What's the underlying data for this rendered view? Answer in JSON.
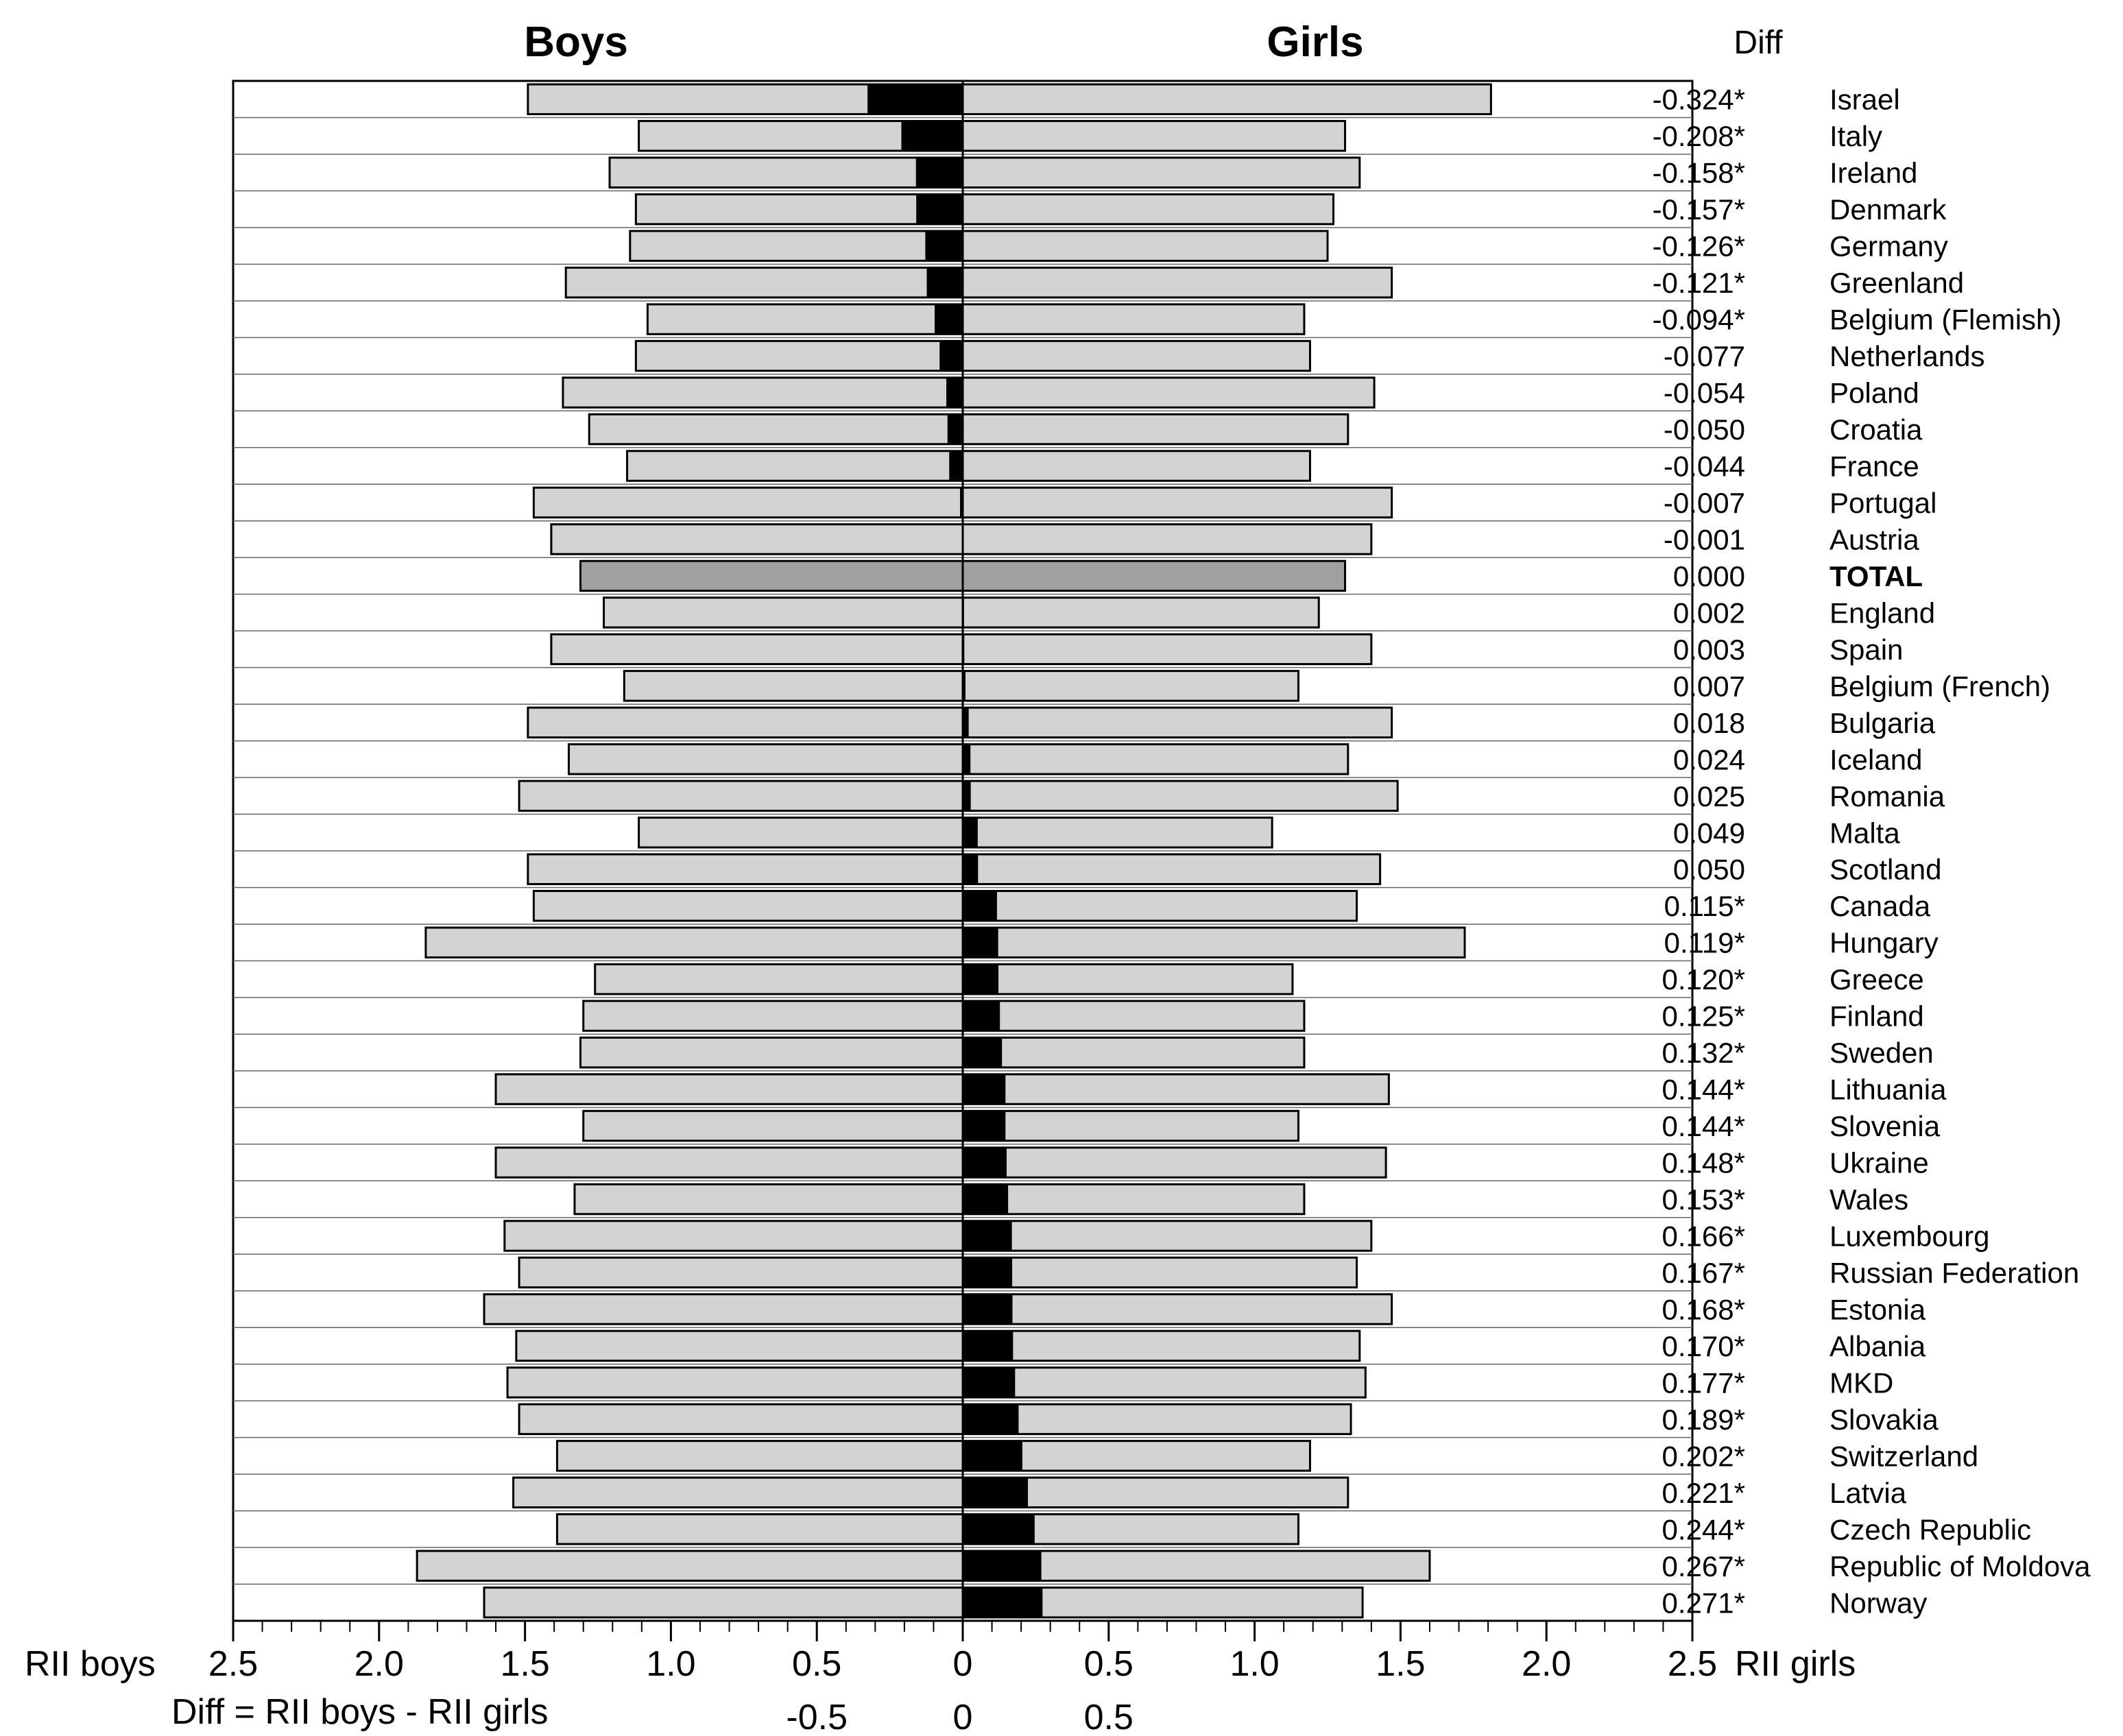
{
  "chart_data": {
    "type": "bar",
    "orientation": "horizontal",
    "layout": "back-to-back",
    "headers": {
      "left": "Boys",
      "right": "Girls",
      "diff": "Diff"
    },
    "total_label": "TOTAL",
    "axis": {
      "left_label": "RII boys",
      "right_label": "RII girls",
      "diff_label": "Diff = RII boys - RII girls",
      "range": [
        0,
        2.5
      ],
      "ticks_left": [
        "2.5",
        "2.0",
        "1.5",
        "1.0",
        "0.5",
        "0"
      ],
      "ticks_right": [
        "0.5",
        "1.0",
        "1.5",
        "2.0",
        "2.5"
      ],
      "diff_ticks": [
        "-0.5",
        "0",
        "0.5"
      ]
    },
    "colors": {
      "bar": "#d3d3d3",
      "total": "#a0a0a0",
      "diff": "#000000",
      "outline": "#000000"
    },
    "rows": [
      {
        "country": "Israel",
        "diff": "-0.324*",
        "diff_value": -0.324,
        "boys": 1.49,
        "girls": 1.81
      },
      {
        "country": "Italy",
        "diff": "-0.208*",
        "diff_value": -0.208,
        "boys": 1.11,
        "girls": 1.31
      },
      {
        "country": "Ireland",
        "diff": "-0.158*",
        "diff_value": -0.158,
        "boys": 1.21,
        "girls": 1.36
      },
      {
        "country": "Denmark",
        "diff": "-0.157*",
        "diff_value": -0.157,
        "boys": 1.12,
        "girls": 1.27
      },
      {
        "country": "Germany",
        "diff": "-0.126*",
        "diff_value": -0.126,
        "boys": 1.14,
        "girls": 1.25
      },
      {
        "country": "Greenland",
        "diff": "-0.121*",
        "diff_value": -0.121,
        "boys": 1.36,
        "girls": 1.47
      },
      {
        "country": "Belgium (Flemish)",
        "diff": "-0.094*",
        "diff_value": -0.094,
        "boys": 1.08,
        "girls": 1.17
      },
      {
        "country": "Netherlands",
        "diff": "-0.077",
        "diff_value": -0.077,
        "boys": 1.12,
        "girls": 1.19
      },
      {
        "country": "Poland",
        "diff": "-0.054",
        "diff_value": -0.054,
        "boys": 1.37,
        "girls": 1.41
      },
      {
        "country": "Croatia",
        "diff": "-0.050",
        "diff_value": -0.05,
        "boys": 1.28,
        "girls": 1.32
      },
      {
        "country": "France",
        "diff": "-0.044",
        "diff_value": -0.044,
        "boys": 1.15,
        "girls": 1.19
      },
      {
        "country": "Portugal",
        "diff": "-0.007",
        "diff_value": -0.007,
        "boys": 1.47,
        "girls": 1.47
      },
      {
        "country": "Austria",
        "diff": "-0.001",
        "diff_value": -0.001,
        "boys": 1.41,
        "girls": 1.4
      },
      {
        "country": "TOTAL",
        "diff": "0.000",
        "diff_value": 0.0,
        "boys": 1.31,
        "girls": 1.31,
        "total": true
      },
      {
        "country": "England",
        "diff": "0.002",
        "diff_value": 0.002,
        "boys": 1.23,
        "girls": 1.22
      },
      {
        "country": "Spain",
        "diff": "0.003",
        "diff_value": 0.003,
        "boys": 1.41,
        "girls": 1.4
      },
      {
        "country": "Belgium (French)",
        "diff": "0.007",
        "diff_value": 0.007,
        "boys": 1.16,
        "girls": 1.15
      },
      {
        "country": "Bulgaria",
        "diff": "0.018",
        "diff_value": 0.018,
        "boys": 1.49,
        "girls": 1.47
      },
      {
        "country": "Iceland",
        "diff": "0.024",
        "diff_value": 0.024,
        "boys": 1.35,
        "girls": 1.32
      },
      {
        "country": "Romania",
        "diff": "0.025",
        "diff_value": 0.025,
        "boys": 1.52,
        "girls": 1.49
      },
      {
        "country": "Malta",
        "diff": "0.049",
        "diff_value": 0.049,
        "boys": 1.11,
        "girls": 1.06
      },
      {
        "country": "Scotland",
        "diff": "0.050",
        "diff_value": 0.05,
        "boys": 1.49,
        "girls": 1.43
      },
      {
        "country": "Canada",
        "diff": "0.115*",
        "diff_value": 0.115,
        "boys": 1.47,
        "girls": 1.35
      },
      {
        "country": "Hungary",
        "diff": "0.119*",
        "diff_value": 0.119,
        "boys": 1.84,
        "girls": 1.72
      },
      {
        "country": "Greece",
        "diff": "0.120*",
        "diff_value": 0.12,
        "boys": 1.26,
        "girls": 1.13
      },
      {
        "country": "Finland",
        "diff": "0.125*",
        "diff_value": 0.125,
        "boys": 1.3,
        "girls": 1.17
      },
      {
        "country": "Sweden",
        "diff": "0.132*",
        "diff_value": 0.132,
        "boys": 1.31,
        "girls": 1.17
      },
      {
        "country": "Lithuania",
        "diff": "0.144*",
        "diff_value": 0.144,
        "boys": 1.6,
        "girls": 1.46
      },
      {
        "country": "Slovenia",
        "diff": "0.144*",
        "diff_value": 0.144,
        "boys": 1.3,
        "girls": 1.15
      },
      {
        "country": "Ukraine",
        "diff": "0.148*",
        "diff_value": 0.148,
        "boys": 1.6,
        "girls": 1.45
      },
      {
        "country": "Wales",
        "diff": "0.153*",
        "diff_value": 0.153,
        "boys": 1.33,
        "girls": 1.17
      },
      {
        "country": "Luxembourg",
        "diff": "0.166*",
        "diff_value": 0.166,
        "boys": 1.57,
        "girls": 1.4
      },
      {
        "country": "Russian Federation",
        "diff": "0.167*",
        "diff_value": 0.167,
        "boys": 1.52,
        "girls": 1.35
      },
      {
        "country": "Estonia",
        "diff": "0.168*",
        "diff_value": 0.168,
        "boys": 1.64,
        "girls": 1.47
      },
      {
        "country": "Albania",
        "diff": "0.170*",
        "diff_value": 0.17,
        "boys": 1.53,
        "girls": 1.36
      },
      {
        "country": "MKD",
        "diff": "0.177*",
        "diff_value": 0.177,
        "boys": 1.56,
        "girls": 1.38
      },
      {
        "country": "Slovakia",
        "diff": "0.189*",
        "diff_value": 0.189,
        "boys": 1.52,
        "girls": 1.33
      },
      {
        "country": "Switzerland",
        "diff": "0.202*",
        "diff_value": 0.202,
        "boys": 1.39,
        "girls": 1.19
      },
      {
        "country": "Latvia",
        "diff": "0.221*",
        "diff_value": 0.221,
        "boys": 1.54,
        "girls": 1.32
      },
      {
        "country": "Czech Republic",
        "diff": "0.244*",
        "diff_value": 0.244,
        "boys": 1.39,
        "girls": 1.15
      },
      {
        "country": "Republic of Moldova",
        "diff": "0.267*",
        "diff_value": 0.267,
        "boys": 1.87,
        "girls": 1.6
      },
      {
        "country": "Norway",
        "diff": "0.271*",
        "diff_value": 0.271,
        "boys": 1.64,
        "girls": 1.37
      }
    ]
  }
}
